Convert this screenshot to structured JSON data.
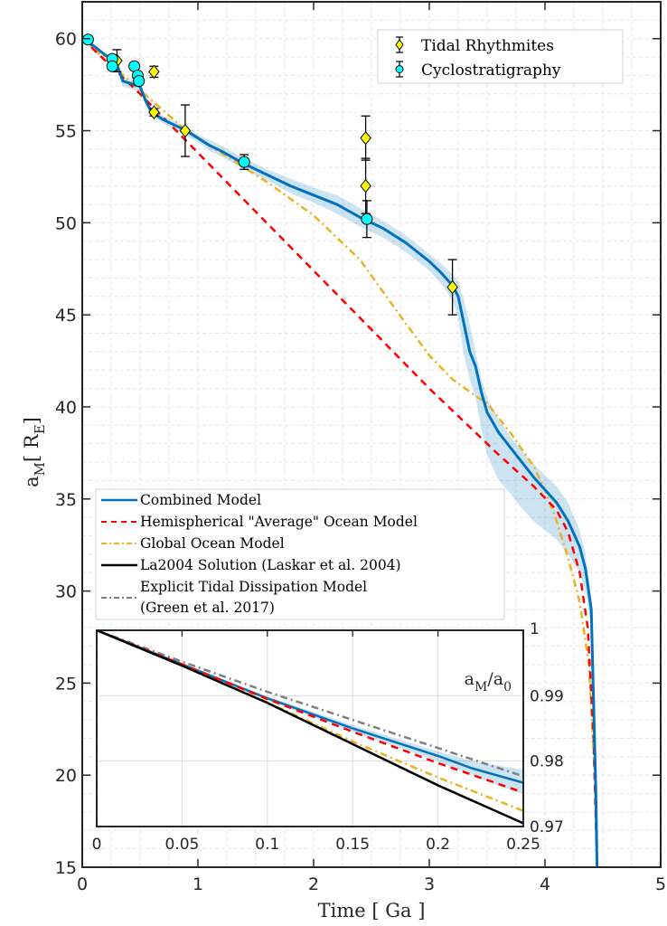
{
  "chart_data": {
    "type": "line",
    "title": "",
    "xlabel": "Time [ Ga ]",
    "ylabel_main": "a",
    "ylabel_sub": "M",
    "ylabel_unit_open": "[ R",
    "ylabel_unit_sub": "E",
    "ylabel_unit_close": "]",
    "xlim": [
      0,
      5
    ],
    "ylim": [
      15,
      62
    ],
    "xticks": [
      0,
      1,
      2,
      3,
      4,
      5
    ],
    "yticks": [
      15,
      20,
      25,
      30,
      35,
      40,
      45,
      50,
      55,
      60
    ],
    "grid": true,
    "series": [
      {
        "name": "Combined Model",
        "style": "solid",
        "color": "#0072BD",
        "x": [
          0,
          0.1,
          0.2,
          0.3,
          0.35,
          0.45,
          0.5,
          0.55,
          0.6,
          0.7,
          0.8,
          0.9,
          1.0,
          1.1,
          1.2,
          1.4,
          1.6,
          1.8,
          2.0,
          2.2,
          2.4,
          2.6,
          2.8,
          3.0,
          3.1,
          3.2,
          3.25,
          3.3,
          3.35,
          3.4,
          3.45,
          3.5,
          3.6,
          3.7,
          3.8,
          3.9,
          4.0,
          4.1,
          4.2,
          4.3,
          4.35,
          4.4,
          4.42,
          4.44,
          4.45
        ],
        "y": [
          60,
          59.6,
          59.1,
          58.6,
          57.7,
          57.5,
          57.4,
          56.6,
          56.0,
          55.6,
          55.3,
          55.0,
          54.6,
          54.2,
          53.9,
          53.2,
          52.6,
          52.0,
          51.5,
          51.0,
          50.3,
          49.7,
          48.9,
          47.9,
          47.3,
          46.6,
          46.0,
          44.5,
          43.0,
          42.2,
          40.8,
          39.7,
          38.6,
          37.8,
          37.0,
          36.2,
          35.5,
          34.8,
          33.8,
          32.4,
          31.2,
          29.0,
          24.0,
          19.0,
          15.0
        ],
        "band_upper": [
          60,
          59.7,
          59.2,
          58.8,
          57.9,
          57.7,
          57.6,
          56.8,
          56.2,
          55.8,
          55.5,
          55.2,
          54.8,
          54.5,
          54.2,
          53.5,
          52.9,
          52.4,
          51.9,
          51.5,
          50.8,
          50.1,
          49.3,
          48.3,
          47.8,
          47.2,
          46.8,
          45.8,
          44.5,
          43.0,
          41.5,
          40.5,
          39.3,
          38.4,
          37.6,
          36.9,
          36.3,
          35.7,
          34.8,
          33.3,
          32.0,
          29.6,
          24.3,
          19.2,
          15.0
        ],
        "band_lower": [
          60,
          59.5,
          59.0,
          58.4,
          57.4,
          57.2,
          57.1,
          56.4,
          55.8,
          55.4,
          55.1,
          54.7,
          54.4,
          53.9,
          53.6,
          52.9,
          52.3,
          51.6,
          51.1,
          50.5,
          49.8,
          49.2,
          48.4,
          47.4,
          46.7,
          45.8,
          44.8,
          42.8,
          41.5,
          40.5,
          38.8,
          37.4,
          36.0,
          35.3,
          34.5,
          33.8,
          33.3,
          32.8,
          32.0,
          31.0,
          30.0,
          28.0,
          23.5,
          18.7,
          15.0
        ]
      },
      {
        "name": "Hemispherical \"Average\" Ocean Model",
        "style": "dashed",
        "color": "#FF0000",
        "x": [
          0,
          0.5,
          1.0,
          1.5,
          2.0,
          2.5,
          3.0,
          3.3,
          3.6,
          3.9,
          4.1,
          4.2,
          4.3,
          4.37,
          4.42,
          4.45
        ],
        "y": [
          60,
          57.0,
          53.8,
          50.6,
          47.4,
          44.2,
          41.0,
          39.2,
          37.4,
          35.7,
          34.4,
          33.2,
          31.0,
          28.0,
          22.0,
          15.0
        ]
      },
      {
        "name": "Global Ocean Model",
        "style": "dashdot",
        "color": "#EDB120",
        "x": [
          0,
          0.5,
          0.9,
          1.2,
          1.6,
          2.0,
          2.4,
          2.8,
          3.0,
          3.2,
          3.4,
          3.5,
          3.7,
          3.9,
          4.0,
          4.1,
          4.2,
          4.3,
          4.38,
          4.43,
          4.45
        ],
        "y": [
          60,
          57.2,
          55.0,
          53.8,
          52.2,
          50.4,
          48.0,
          44.5,
          42.8,
          41.5,
          40.6,
          40.2,
          38.6,
          36.8,
          35.5,
          33.8,
          31.8,
          29.4,
          26.0,
          20.0,
          15.0
        ]
      }
    ],
    "tidal_rhythmites": {
      "name": "Tidal Rhythmites",
      "color": "#FFFF00",
      "points": [
        {
          "x": 0.3,
          "y": 58.8,
          "err": 0.6
        },
        {
          "x": 0.62,
          "y": 58.2,
          "err": 0.3
        },
        {
          "x": 0.62,
          "y": 56.0,
          "err": 0.2
        },
        {
          "x": 0.89,
          "y": 55.0,
          "err": 1.4
        },
        {
          "x": 2.45,
          "y": 54.6,
          "err": 1.2
        },
        {
          "x": 2.45,
          "y": 52.0,
          "err": 1.5
        },
        {
          "x": 3.2,
          "y": 46.5,
          "err": 1.5
        }
      ]
    },
    "cyclostratigraphy": {
      "name": "Cyclostratigraphy",
      "color": "#00FFFF",
      "points": [
        {
          "x": 0.05,
          "y": 59.95,
          "err": 0.1
        },
        {
          "x": 0.26,
          "y": 58.9,
          "err": 0.2
        },
        {
          "x": 0.26,
          "y": 58.5,
          "err": 0.2
        },
        {
          "x": 0.45,
          "y": 58.5,
          "err": 0.2
        },
        {
          "x": 0.48,
          "y": 58.0,
          "err": 0.2
        },
        {
          "x": 0.49,
          "y": 57.7,
          "err": 0.2
        },
        {
          "x": 1.4,
          "y": 53.3,
          "err": 0.4
        },
        {
          "x": 2.46,
          "y": 50.2,
          "err": 1.0
        }
      ]
    },
    "legend_markers": [
      "Tidal Rhythmites",
      "Cyclostratigraphy"
    ],
    "legend_markers_placement": "top-right",
    "legend_lines_placement": "center-left",
    "legend_lines": [
      {
        "label": "Combined Model",
        "color": "#0072BD",
        "style": "solid"
      },
      {
        "label": "Hemispherical \"Average\" Ocean Model",
        "color": "#FF0000",
        "style": "dashed"
      },
      {
        "label": "Global Ocean Model",
        "color": "#EDB120",
        "style": "dashdot"
      },
      {
        "label": "La2004 Solution (Laskar et al. 2004)",
        "color": "#000000",
        "style": "solid"
      },
      {
        "label_line1": "Explicit Tidal Dissipation Model",
        "label_line2": "(Green et al. 2017)",
        "color": "#808080",
        "style": "dashdot"
      }
    ],
    "inset": {
      "ylabel_main": "a",
      "ylabel_sub": "M",
      "ylabel_slash": "/a",
      "ylabel_sub2": "0",
      "xlim": [
        0,
        0.25
      ],
      "ylim": [
        0.97,
        1.0
      ],
      "xticks": [
        "0",
        "0.05",
        "0.1",
        "0.15",
        "0.2",
        "0.25"
      ],
      "xtick_values": [
        0,
        0.05,
        0.1,
        0.15,
        0.2,
        0.25
      ],
      "yticks": [
        "0.97",
        "0.98",
        "0.99",
        "1"
      ],
      "ytick_values": [
        0.97,
        0.98,
        0.99,
        1.0
      ],
      "series": [
        {
          "name": "Explicit Tidal Dissipation Model",
          "color": "#808080",
          "style": "dashdot",
          "x": [
            0,
            0.05,
            0.1,
            0.15,
            0.2,
            0.25
          ],
          "y": [
            1.0,
            0.9952,
            0.9906,
            0.9863,
            0.982,
            0.9777
          ]
        },
        {
          "name": "Combined Model",
          "color": "#0072BD",
          "style": "solid",
          "x": [
            0,
            0.05,
            0.1,
            0.15,
            0.2,
            0.22,
            0.25
          ],
          "y": [
            1.0,
            0.9948,
            0.9896,
            0.985,
            0.9808,
            0.9789,
            0.9767
          ]
        },
        {
          "name": "Hemispherical \"Average\" Ocean Model",
          "color": "#FF0000",
          "style": "dashed",
          "x": [
            0,
            0.05,
            0.1,
            0.15,
            0.2,
            0.25
          ],
          "y": [
            1.0,
            0.9948,
            0.9895,
            0.9845,
            0.9797,
            0.9752
          ]
        },
        {
          "name": "Global Ocean Model",
          "color": "#EDB120",
          "style": "dashdot",
          "x": [
            0,
            0.05,
            0.1,
            0.15,
            0.2,
            0.25
          ],
          "y": [
            1.0,
            0.9946,
            0.989,
            0.983,
            0.9775,
            0.9724
          ]
        },
        {
          "name": "La2004 Solution",
          "color": "#000000",
          "style": "solid",
          "x": [
            0,
            0.05,
            0.1,
            0.15,
            0.2,
            0.25
          ],
          "y": [
            1.0,
            0.9946,
            0.9889,
            0.9826,
            0.9763,
            0.9705
          ]
        }
      ],
      "band_x": [
        0,
        0.05,
        0.1,
        0.15,
        0.2,
        0.22,
        0.25
      ],
      "band_upper": [
        1.0,
        0.9949,
        0.9899,
        0.9855,
        0.9815,
        0.98,
        0.9787
      ],
      "band_lower": [
        1.0,
        0.9947,
        0.9893,
        0.9845,
        0.98,
        0.9778,
        0.9749
      ]
    }
  }
}
